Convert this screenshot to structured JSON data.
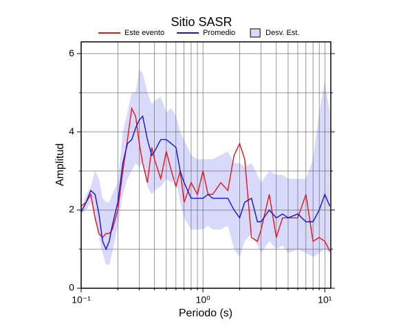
{
  "chart_data": {
    "type": "line",
    "title": "Sitio SASR",
    "xlabel": "Periodo (s)",
    "ylabel": "Amplitud",
    "xscale": "log",
    "grid": true,
    "xlim": [
      0.1,
      11.2
    ],
    "ylim": [
      0,
      6.3
    ],
    "xticks": [
      {
        "value": 0.1,
        "label": "10⁻¹"
      },
      {
        "value": 1,
        "label": "10⁰"
      },
      {
        "value": 10,
        "label": "10¹"
      }
    ],
    "xminorticks": [
      0.2,
      0.3,
      0.4,
      0.5,
      0.6,
      0.7,
      0.8,
      0.9,
      2,
      3,
      4,
      5,
      6,
      7,
      8,
      9
    ],
    "yticks": [
      0,
      2,
      4,
      6
    ],
    "yminorticks": [
      1,
      3,
      5
    ],
    "x": [
      0.1,
      0.11,
      0.12,
      0.13,
      0.14,
      0.15,
      0.16,
      0.17,
      0.18,
      0.2,
      0.22,
      0.24,
      0.26,
      0.28,
      0.3,
      0.32,
      0.35,
      0.38,
      0.4,
      0.45,
      0.5,
      0.55,
      0.6,
      0.65,
      0.7,
      0.8,
      0.9,
      1.0,
      1.1,
      1.2,
      1.4,
      1.6,
      1.8,
      2.0,
      2.2,
      2.5,
      2.8,
      3.0,
      3.5,
      4,
      4.5,
      5,
      6,
      7,
      8,
      9,
      10,
      11
    ],
    "band": {
      "name": "Desv. Est.",
      "color": "#d9d9fb",
      "edge": "#000000",
      "upper": [
        2.0,
        2.4,
        2.6,
        3.0,
        2.8,
        2.3,
        2.2,
        2.2,
        2.4,
        2.7,
        4.0,
        4.5,
        5.0,
        5.0,
        5.6,
        5.5,
        5.0,
        4.7,
        4.8,
        4.9,
        4.5,
        4.6,
        4.4,
        4.0,
        3.8,
        3.4,
        3.3,
        3.3,
        3.3,
        3.3,
        3.4,
        3.5,
        3.2,
        3.2,
        3.1,
        3.2,
        2.9,
        2.7,
        3.0,
        2.9,
        2.9,
        2.8,
        2.8,
        2.8,
        3.3,
        4.5,
        5.3,
        4.5
      ],
      "lower": [
        1.9,
        2.0,
        2.2,
        1.9,
        1.3,
        0.9,
        0.6,
        0.6,
        0.9,
        1.6,
        2.4,
        2.8,
        3.0,
        3.2,
        3.1,
        3.2,
        2.6,
        2.4,
        2.5,
        2.6,
        2.8,
        2.7,
        2.8,
        2.2,
        1.8,
        1.5,
        1.5,
        1.5,
        1.6,
        1.5,
        1.5,
        1.6,
        1.0,
        0.8,
        1.2,
        1.4,
        1.1,
        0.9,
        1.2,
        1.0,
        1.1,
        0.9,
        1.0,
        0.9,
        0.8,
        0.9,
        1.0,
        0.9
      ]
    },
    "series": [
      {
        "name": "Este evento",
        "color": "#ee1111",
        "values": [
          2.1,
          2.2,
          2.4,
          1.8,
          1.4,
          1.3,
          1.4,
          1.4,
          1.5,
          2.0,
          3.0,
          3.8,
          4.6,
          4.4,
          3.7,
          3.2,
          2.7,
          3.6,
          3.3,
          2.8,
          3.5,
          3.0,
          2.6,
          3.0,
          2.2,
          2.7,
          2.4,
          3.0,
          2.4,
          2.4,
          2.7,
          2.5,
          3.4,
          3.7,
          3.3,
          1.3,
          1.2,
          1.5,
          2.4,
          1.3,
          1.8,
          1.8,
          1.8,
          2.4,
          1.2,
          1.3,
          1.2,
          0.95
        ]
      },
      {
        "name": "Promedio",
        "color": "#1111dd",
        "values": [
          1.95,
          2.2,
          2.5,
          2.4,
          1.9,
          1.2,
          1.0,
          1.2,
          1.6,
          2.2,
          3.2,
          3.7,
          3.8,
          4.1,
          4.3,
          4.4,
          3.8,
          3.4,
          3.5,
          3.8,
          3.8,
          3.7,
          3.6,
          3.0,
          2.7,
          2.3,
          2.3,
          2.3,
          2.4,
          2.3,
          2.3,
          2.3,
          2.0,
          1.8,
          2.2,
          2.3,
          1.7,
          1.7,
          2.0,
          1.8,
          1.9,
          1.8,
          1.9,
          1.7,
          1.7,
          2.0,
          2.4,
          2.1
        ]
      }
    ]
  }
}
